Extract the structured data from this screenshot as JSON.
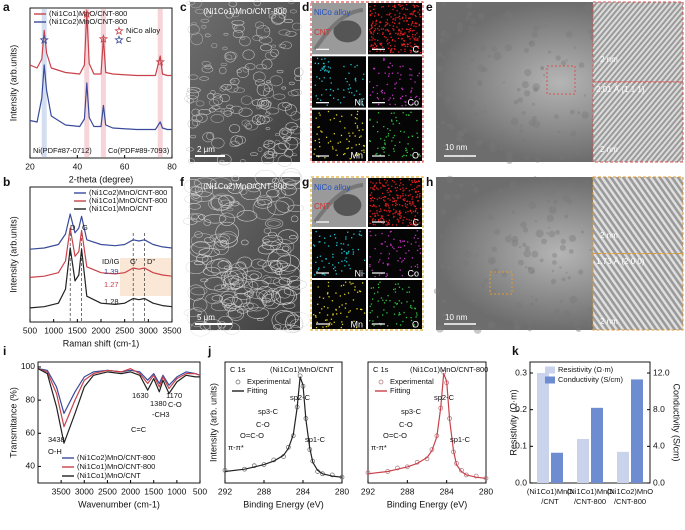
{
  "chart_data": [
    {
      "panel": "a",
      "type": "line",
      "xlabel": "2-theta (degree)",
      "ylabel": "Intensity (arb.units)",
      "x": [
        20,
        23,
        25,
        26,
        27,
        29,
        35,
        41,
        43,
        44,
        45,
        47,
        50,
        51,
        52,
        55,
        65,
        73,
        75,
        76,
        78,
        80
      ],
      "xlim": [
        20,
        80
      ],
      "xticks": [
        20,
        40,
        60,
        80
      ],
      "ylim": [
        0,
        100
      ],
      "series": [
        {
          "name": "(Ni1Co1)MnO/CNT-800",
          "color": "#c8424a",
          "values": [
            62,
            60,
            66,
            85,
            70,
            60,
            57,
            56,
            62,
            97,
            63,
            56,
            56,
            80,
            57,
            56,
            55,
            55,
            68,
            56,
            55,
            55
          ]
        },
        {
          "name": "(Ni1Co2)MnO/CNT-800",
          "color": "#3a4b9b",
          "values": [
            25,
            24,
            40,
            62,
            45,
            28,
            22,
            21,
            26,
            50,
            27,
            21,
            21,
            35,
            22,
            20,
            19,
            19,
            24,
            20,
            19,
            19
          ]
        }
      ],
      "annotations": [
        "NiCo alloy",
        "C",
        "Ni(PDF#87-0712)",
        "Co(PDF#89-7093)"
      ]
    },
    {
      "panel": "b",
      "type": "line",
      "xlabel": "Raman shift (cm-1)",
      "ylabel": "Intensity (arb.units)",
      "x": [
        500,
        800,
        1100,
        1250,
        1350,
        1450,
        1530,
        1590,
        1700,
        2000,
        2300,
        2500,
        2680,
        2800,
        2920,
        3100,
        3300,
        3500
      ],
      "xlim": [
        500,
        3500
      ],
      "xticks": [
        500,
        1000,
        1500,
        2000,
        2500,
        3000,
        3500
      ],
      "ylim": [
        0,
        115
      ],
      "series": [
        {
          "name": "(Ni1Co2)MnO/CNT-800",
          "color": "#3a4b9b",
          "values": [
            62,
            63,
            66,
            75,
            92,
            76,
            80,
            90,
            70,
            66,
            65,
            66,
            70,
            69,
            70,
            66,
            64,
            63
          ]
        },
        {
          "name": "(Ni1Co1)MnO/CNT-800",
          "color": "#c8424a",
          "values": [
            38,
            39,
            42,
            52,
            80,
            56,
            60,
            78,
            47,
            42,
            41,
            42,
            46,
            45,
            46,
            42,
            40,
            39
          ]
        },
        {
          "name": "(Ni1Co1)MnO/CNT",
          "color": "#222222",
          "values": [
            12,
            13,
            16,
            28,
            63,
            35,
            40,
            62,
            22,
            16,
            15,
            16,
            20,
            19,
            20,
            16,
            14,
            13
          ]
        }
      ],
      "annotations": [
        "D",
        "G",
        "G'",
        "D''",
        "ID/IG"
      ],
      "ratios": [
        1.39,
        1.27,
        1.28
      ]
    },
    {
      "panel": "i",
      "type": "line",
      "xlabel": "Wavenumber (cm-1)",
      "ylabel": "Transmitance (%)",
      "x": [
        4000,
        3800,
        3600,
        3438,
        3200,
        3000,
        2800,
        2500,
        2200,
        2000,
        1800,
        1630,
        1500,
        1380,
        1300,
        1170,
        1000,
        800,
        600,
        500
      ],
      "xlim": [
        4000,
        500
      ],
      "xticks": [
        3500,
        3000,
        2500,
        2000,
        1500,
        1000,
        500
      ],
      "ylim": [
        30,
        103
      ],
      "yticks": [
        40,
        60,
        80,
        100
      ],
      "series": [
        {
          "name": "(Ni1Co2)MnO/CNT-800",
          "color": "#3a4b9b",
          "values": [
            99,
            98,
            88,
            72,
            85,
            94,
            97,
            98,
            97,
            98,
            97,
            92,
            96,
            90,
            95,
            89,
            94,
            97,
            96,
            95
          ]
        },
        {
          "name": "(Ni1Co1)MnO/CNT-800",
          "color": "#c8424a",
          "values": [
            99,
            97,
            84,
            64,
            80,
            92,
            96,
            98,
            97,
            99,
            96,
            90,
            95,
            88,
            94,
            87,
            93,
            96,
            96,
            95
          ]
        },
        {
          "name": "(Ni1Co1)MnO/CNT",
          "color": "#222222",
          "values": [
            99,
            96,
            76,
            54,
            72,
            88,
            95,
            97,
            96,
            97,
            95,
            86,
            93,
            85,
            92,
            84,
            91,
            95,
            94,
            94
          ]
        }
      ],
      "annotations": [
        "3438",
        "O-H",
        "1630",
        "C=C",
        "1380",
        "-CH3",
        "1170",
        "C-O"
      ]
    },
    {
      "panel": "j",
      "type": "line",
      "title": "C 1s",
      "subtitle": "(Ni1Co1)MnO/CNT",
      "xlabel": "Binding Energy (eV)",
      "ylabel": "Intensity (arb. units)",
      "x": [
        292,
        290,
        289,
        288,
        287,
        286,
        285.5,
        285,
        284.6,
        284.3,
        284,
        283.7,
        283.3,
        283,
        282.5,
        282,
        281,
        280
      ],
      "xlim": [
        292,
        280
      ],
      "xticks": [
        292,
        288,
        284,
        280
      ],
      "ylim": [
        0,
        105
      ],
      "series": [
        {
          "name": "Experimental",
          "color": "#666666",
          "marker": "circle",
          "values": [
            11,
            12,
            15,
            16,
            20,
            23,
            31,
            41,
            66,
            93,
            84,
            56,
            29,
            19,
            10,
            8,
            7,
            5
          ]
        },
        {
          "name": "Fitting",
          "color": "#222222",
          "values": [
            10,
            12,
            14,
            16,
            19,
            24,
            30,
            42,
            65,
            92,
            85,
            55,
            30,
            18,
            11,
            8,
            6,
            5
          ]
        }
      ],
      "annotations": [
        "π-π*",
        "O=C-O",
        "C-O",
        "sp3-C",
        "sp2-C",
        "sp1-C"
      ]
    },
    {
      "type": "line",
      "title": "C 1s",
      "subtitle": "(Ni1Co1)MnO/CNT-800",
      "xlabel": "Binding Energy (eV)",
      "x": [
        292,
        290,
        289,
        288,
        287,
        286,
        285.5,
        285,
        284.6,
        284.3,
        284,
        283.7,
        283.3,
        283,
        282.5,
        282,
        281,
        280
      ],
      "xlim": [
        292,
        280
      ],
      "xticks": [
        292,
        288,
        284,
        280
      ],
      "ylim": [
        0,
        105
      ],
      "series": [
        {
          "name": "Experimental",
          "color": "#b0707a",
          "marker": "circle",
          "values": [
            9,
            10,
            13,
            14,
            18,
            21,
            29,
            41,
            65,
            96,
            87,
            56,
            27,
            17,
            11,
            7,
            6,
            4
          ]
        },
        {
          "name": "Fitting",
          "color": "#c8424a",
          "values": [
            8,
            10,
            12,
            14,
            17,
            22,
            28,
            40,
            66,
            95,
            88,
            55,
            28,
            16,
            10,
            7,
            5,
            4
          ]
        }
      ],
      "annotations": [
        "π-π*",
        "O=C-O",
        "C-O",
        "sp3-C",
        "sp2-C",
        "sp1-C"
      ]
    },
    {
      "panel": "k",
      "type": "bar",
      "ylabel": "Resistivity (Ω·m)",
      "y2label": "Conductivity (S/cm)",
      "categories": [
        "(Ni1Co1)MnO\n/CNT",
        "(Ni1Co1)MnO\n/CNT-800",
        "(Ni1Co2)MnO\n/CNT-800"
      ],
      "ylim": [
        0,
        0.33
      ],
      "yticks": [
        {
          "value": 0,
          "label": "0.0"
        },
        0.1,
        0.2,
        0.3
      ],
      "y2lim": [
        0,
        13.2
      ],
      "y2ticks": [
        {
          "value": 0,
          "label": "0.0"
        },
        {
          "value": 4,
          "label": "4.0"
        },
        {
          "value": 8,
          "label": "8.0"
        },
        {
          "value": 12,
          "label": "12.0"
        }
      ],
      "series": [
        {
          "name": "Resistivity (Ω·m)",
          "color": "#c9d3ec",
          "values": [
            0.3,
            0.12,
            0.085
          ]
        },
        {
          "name": "Conductivity (S/cm)",
          "color": "#6d8dd0",
          "axis": "y2",
          "values": [
            3.3,
            8.2,
            11.3
          ]
        }
      ]
    }
  ],
  "images": [
    {
      "panel": "c",
      "texts": [
        "(Ni1Co1)MnO/CNT-800",
        "2 μm"
      ]
    },
    {
      "panel": "d",
      "texts": [
        "NiCo alloy",
        "CNT",
        "C",
        "Ni",
        "Co",
        "Mn",
        "O"
      ]
    },
    {
      "panel": "e",
      "texts": [
        "2 nm",
        "2.01 Å (1 1 1)",
        "10 nm",
        "2 nm"
      ]
    },
    {
      "panel": "f",
      "texts": [
        "(Ni1Co2)MnO/CNT-800",
        "5 μm"
      ]
    },
    {
      "panel": "g",
      "texts": [
        "NiCo alloy",
        "CNT",
        "C",
        "Ni",
        "Co",
        "Mn",
        "O"
      ]
    },
    {
      "panel": "h",
      "texts": [
        "2 nm",
        "1.73 Å (2 0 0)",
        "10 nm",
        "2 nm"
      ]
    }
  ]
}
